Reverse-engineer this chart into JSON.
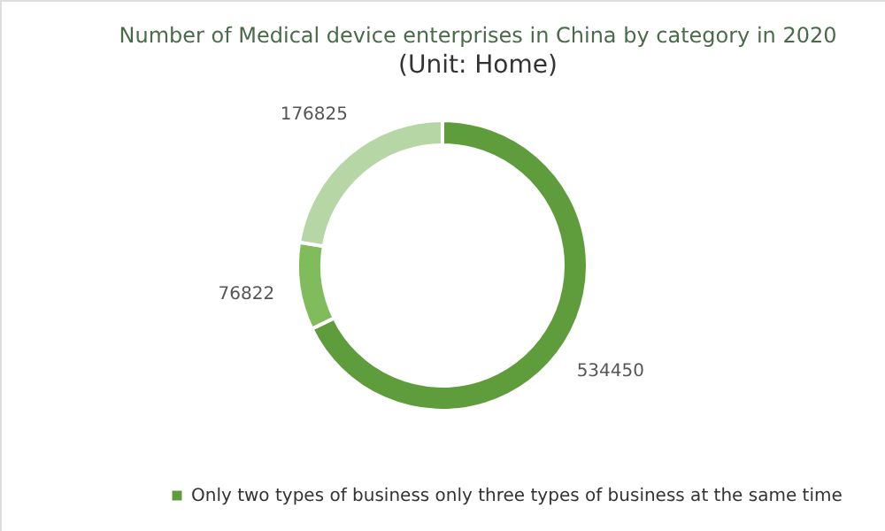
{
  "chart_data": {
    "type": "donut",
    "title": "Number of Medical device enterprises in China by category in 2020",
    "subtitle": "(Unit: Home)",
    "categories": [
      "Only two types of business only three types of business at the same time",
      null,
      null
    ],
    "values": [
      534450,
      76822,
      176825
    ],
    "colors": [
      "#5e9c3c",
      "#80bb5c",
      "#b7d6a5"
    ],
    "data_labels": true,
    "legend": "bottom"
  }
}
